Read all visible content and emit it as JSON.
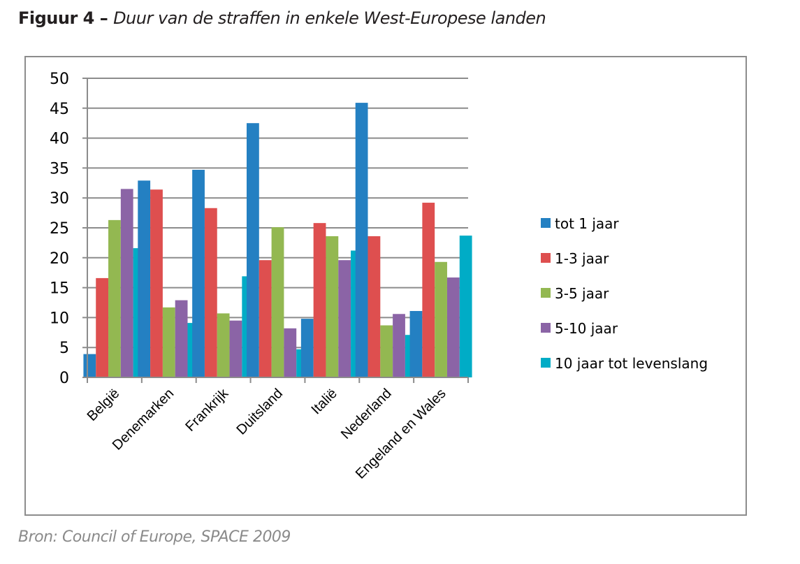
{
  "figure": {
    "label": "Figuur 4 – ",
    "caption": "Duur van de straffen in enkele West-Europese landen",
    "source": "Bron: Council of Europe, SPACE 2009"
  },
  "chart_data": {
    "type": "bar",
    "title": "Figuur 4 – Duur van de straffen in enkele West-Europese landen",
    "xlabel": "",
    "ylabel": "",
    "ylim": [
      0,
      50
    ],
    "yticks": [
      0,
      5,
      10,
      15,
      20,
      25,
      30,
      35,
      40,
      45,
      50
    ],
    "grid": true,
    "legend_position": "right",
    "categories": [
      "België",
      "Denemarken",
      "Frankrijk",
      "Duitsland",
      "Italië",
      "Nederland",
      "Engeland en Wales"
    ],
    "series": [
      {
        "name": "tot 1 jaar",
        "color": "#2480c2",
        "values": [
          3.9,
          32.9,
          34.7,
          42.5,
          9.8,
          45.9,
          11.1
        ]
      },
      {
        "name": "1-3 jaar",
        "color": "#de4f4f",
        "values": [
          16.6,
          31.4,
          28.3,
          19.6,
          25.8,
          23.6,
          29.2
        ]
      },
      {
        "name": "3-5 jaar",
        "color": "#93b851",
        "values": [
          26.3,
          11.7,
          10.7,
          25.1,
          23.6,
          8.7,
          19.3
        ]
      },
      {
        "name": "5-10 jaar",
        "color": "#8b64a6",
        "values": [
          31.5,
          12.9,
          9.5,
          8.2,
          19.6,
          10.6,
          16.7
        ]
      },
      {
        "name": "10 jaar tot levenslang",
        "color": "#00acc6",
        "values": [
          21.6,
          9.1,
          16.9,
          4.7,
          21.2,
          7.1,
          23.7
        ]
      }
    ],
    "source": "Bron: Council of Europe, SPACE 2009"
  }
}
